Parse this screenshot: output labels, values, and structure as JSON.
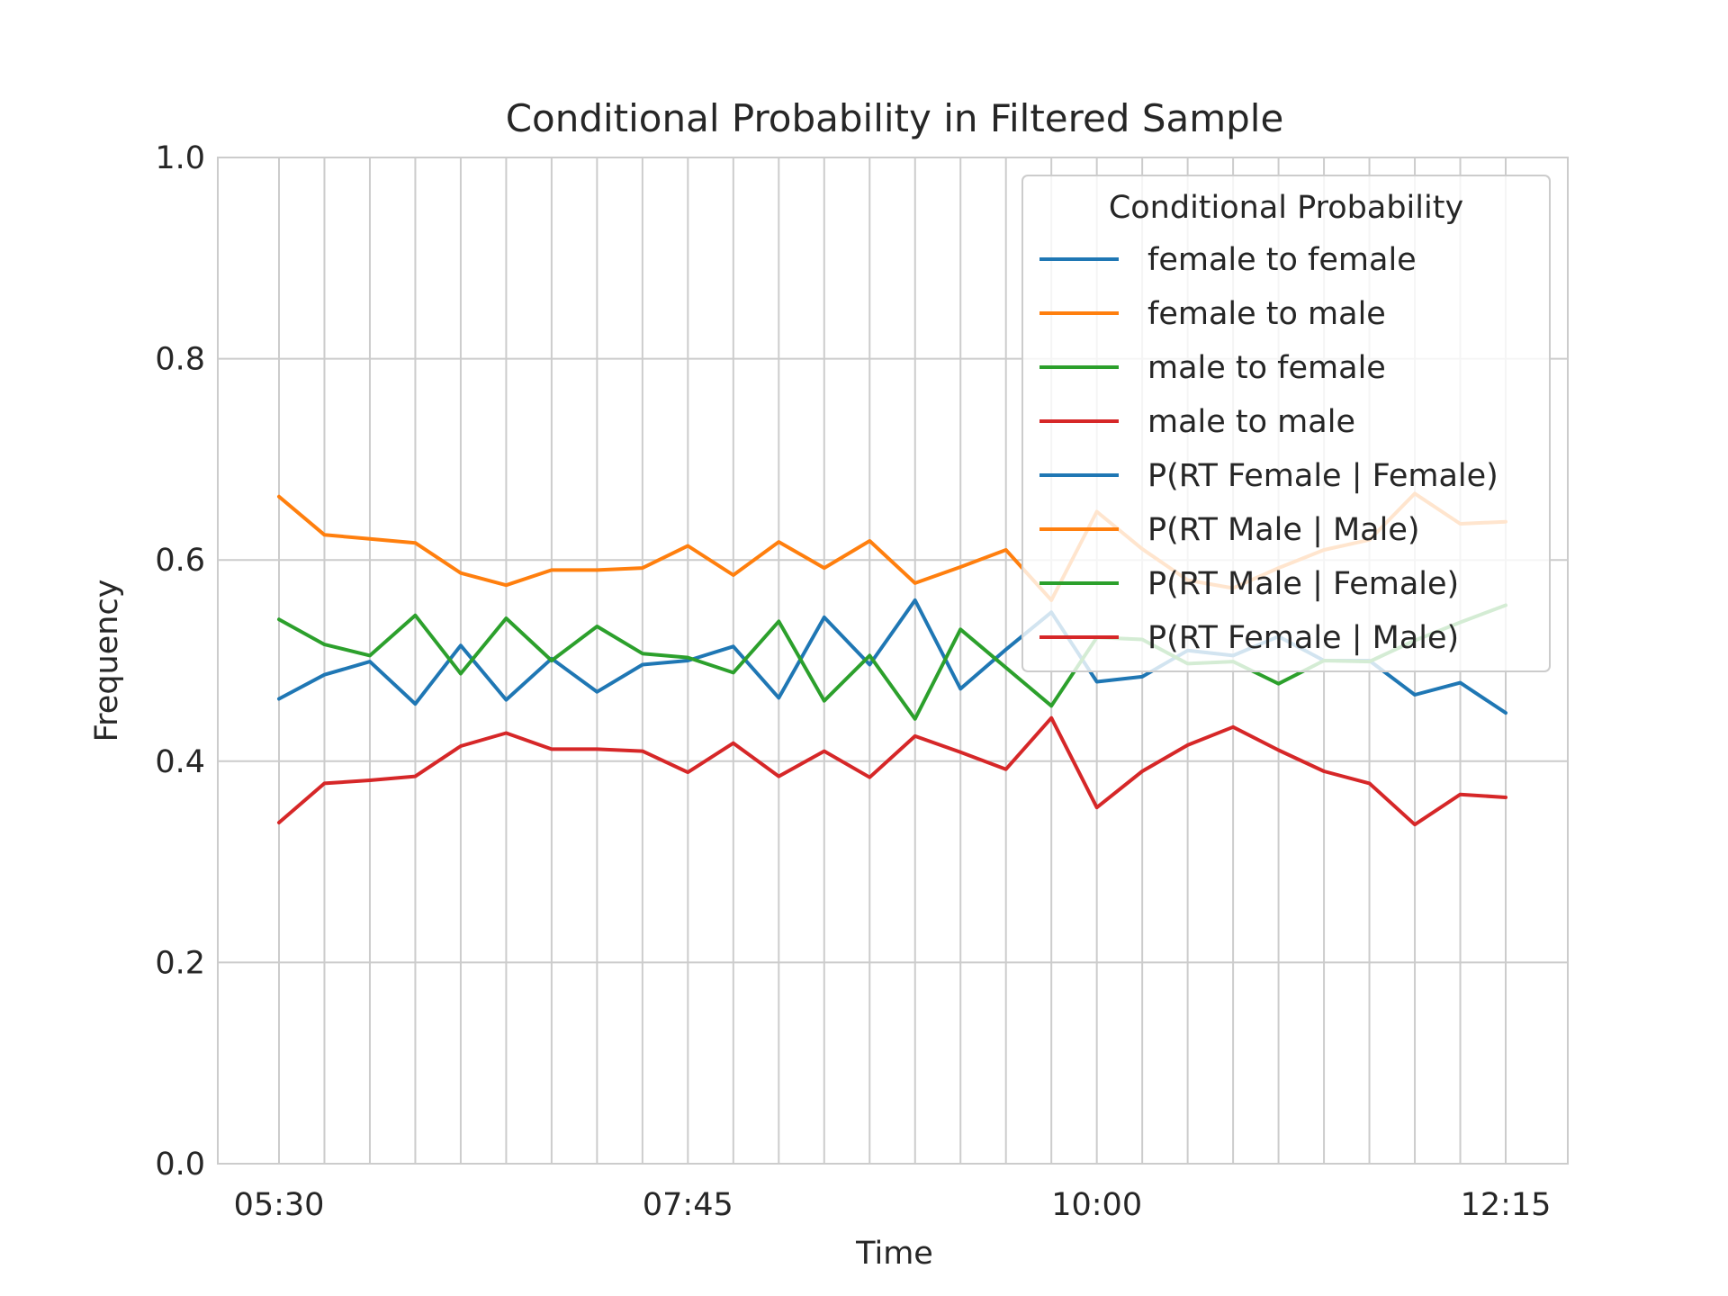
{
  "chart_data": {
    "type": "line",
    "title": "Conditional Probability in Filtered Sample",
    "xlabel": "Time",
    "ylabel": "Frequency",
    "ylim": [
      0,
      1.0
    ],
    "yticks": [
      "0.0",
      "0.2",
      "0.4",
      "0.6",
      "0.8",
      "1.0"
    ],
    "x": [
      "05:30",
      "05:45",
      "06:00",
      "06:15",
      "06:30",
      "06:45",
      "07:00",
      "07:15",
      "07:30",
      "07:45",
      "08:00",
      "08:15",
      "08:30",
      "08:45",
      "09:00",
      "09:15",
      "09:30",
      "09:45",
      "10:00",
      "10:15",
      "10:30",
      "10:45",
      "11:00",
      "11:15",
      "11:30",
      "11:45",
      "12:00",
      "12:15"
    ],
    "xtick_labels": [
      "05:30",
      "07:45",
      "10:00",
      "12:15"
    ],
    "grid": true,
    "legend": {
      "title": "Conditional Probability",
      "placement": "top-right"
    },
    "series": [
      {
        "name": "female to female",
        "color": "#1f77b4",
        "values": [
          0.462,
          0.486,
          0.499,
          0.457,
          0.515,
          0.461,
          0.502,
          0.469,
          0.496,
          0.5,
          0.514,
          0.463,
          0.543,
          0.496,
          0.56,
          0.472,
          0.511,
          0.548,
          0.479,
          0.484,
          0.51,
          0.505,
          0.524,
          0.5,
          0.5,
          0.466,
          0.478,
          0.448
        ]
      },
      {
        "name": "female to male",
        "color": "#ff7f0e",
        "values": [
          0.663,
          0.625,
          0.621,
          0.617,
          0.587,
          0.575,
          0.59,
          0.59,
          0.592,
          0.614,
          0.585,
          0.618,
          0.592,
          0.619,
          0.577,
          0.593,
          0.61,
          0.56,
          0.648,
          0.611,
          0.58,
          0.572,
          0.592,
          0.61,
          0.62,
          0.666,
          0.636,
          0.638
        ]
      },
      {
        "name": "male to female",
        "color": "#2ca02c",
        "values": [
          0.541,
          0.516,
          0.505,
          0.545,
          0.487,
          0.542,
          0.5,
          0.534,
          0.507,
          0.503,
          0.488,
          0.539,
          0.46,
          0.505,
          0.442,
          0.531,
          0.493,
          0.455,
          0.523,
          0.521,
          0.497,
          0.499,
          0.477,
          0.5,
          0.499,
          0.52,
          0.538,
          0.555
        ]
      },
      {
        "name": "male to male",
        "color": "#d62728",
        "values": [
          0.339,
          0.378,
          0.381,
          0.385,
          0.415,
          0.428,
          0.412,
          0.412,
          0.41,
          0.389,
          0.418,
          0.385,
          0.41,
          0.384,
          0.425,
          0.409,
          0.392,
          0.443,
          0.354,
          0.39,
          0.416,
          0.434,
          0.411,
          0.39,
          0.378,
          0.337,
          0.367,
          0.364
        ]
      }
    ],
    "legend_entries": [
      {
        "label": "female to female",
        "color": "#1f77b4"
      },
      {
        "label": "female to male",
        "color": "#ff7f0e"
      },
      {
        "label": "male to female",
        "color": "#2ca02c"
      },
      {
        "label": "male to male",
        "color": "#d62728"
      },
      {
        "label": "P(RT Female | Female)",
        "color": "#1f77b4"
      },
      {
        "label": "P(RT Male | Male)",
        "color": "#ff7f0e"
      },
      {
        "label": "P(RT Male | Female)",
        "color": "#2ca02c"
      },
      {
        "label": "P(RT Female | Male)",
        "color": "#d62728"
      }
    ]
  }
}
